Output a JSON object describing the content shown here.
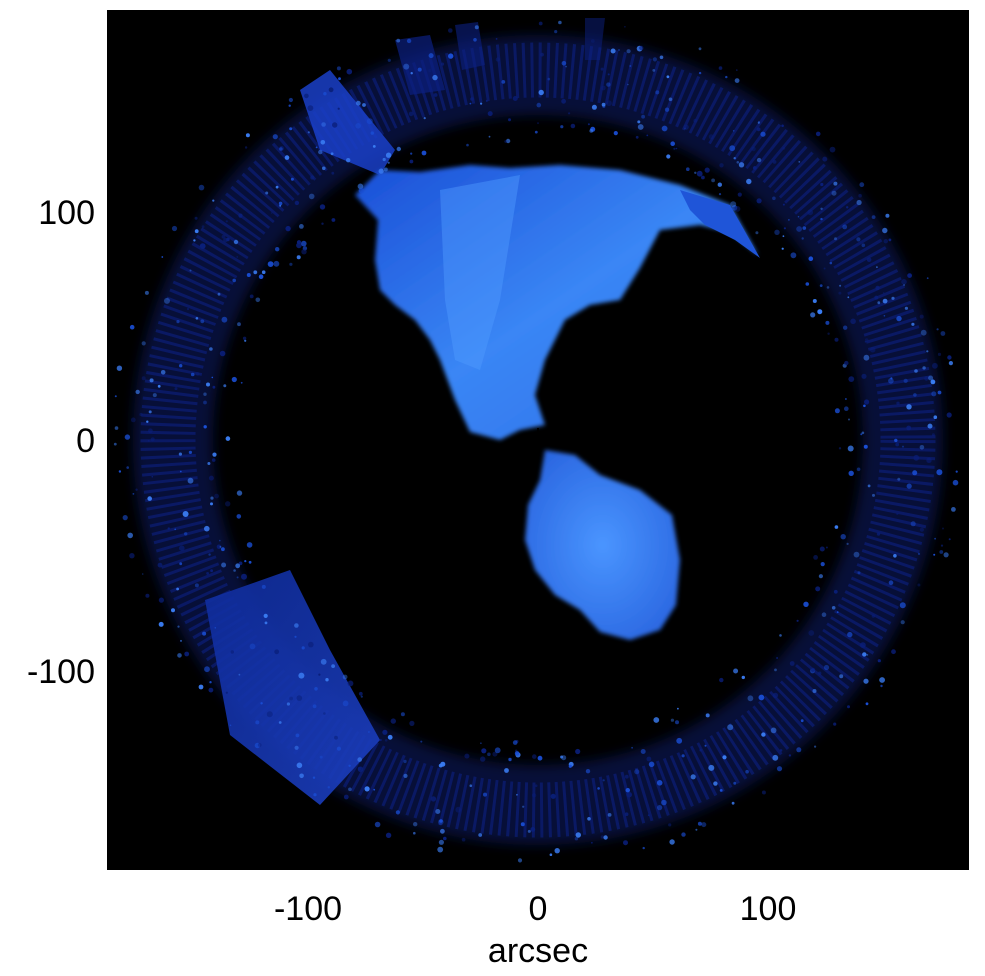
{
  "image": {
    "background_color": "#000000",
    "emission_colors": [
      "#0a1f7a",
      "#1a4fd6",
      "#3a7cf2",
      "#5aa6ff"
    ]
  },
  "axes": {
    "x_ticks": [
      {
        "value": -100,
        "label": "-100"
      },
      {
        "value": 0,
        "label": "0"
      },
      {
        "value": 100,
        "label": "100"
      }
    ],
    "y_ticks": [
      {
        "value": 100,
        "label": "100"
      },
      {
        "value": 0,
        "label": "0"
      },
      {
        "value": -100,
        "label": "-100"
      }
    ],
    "xlabel": "arcsec",
    "ylabel": ""
  }
}
